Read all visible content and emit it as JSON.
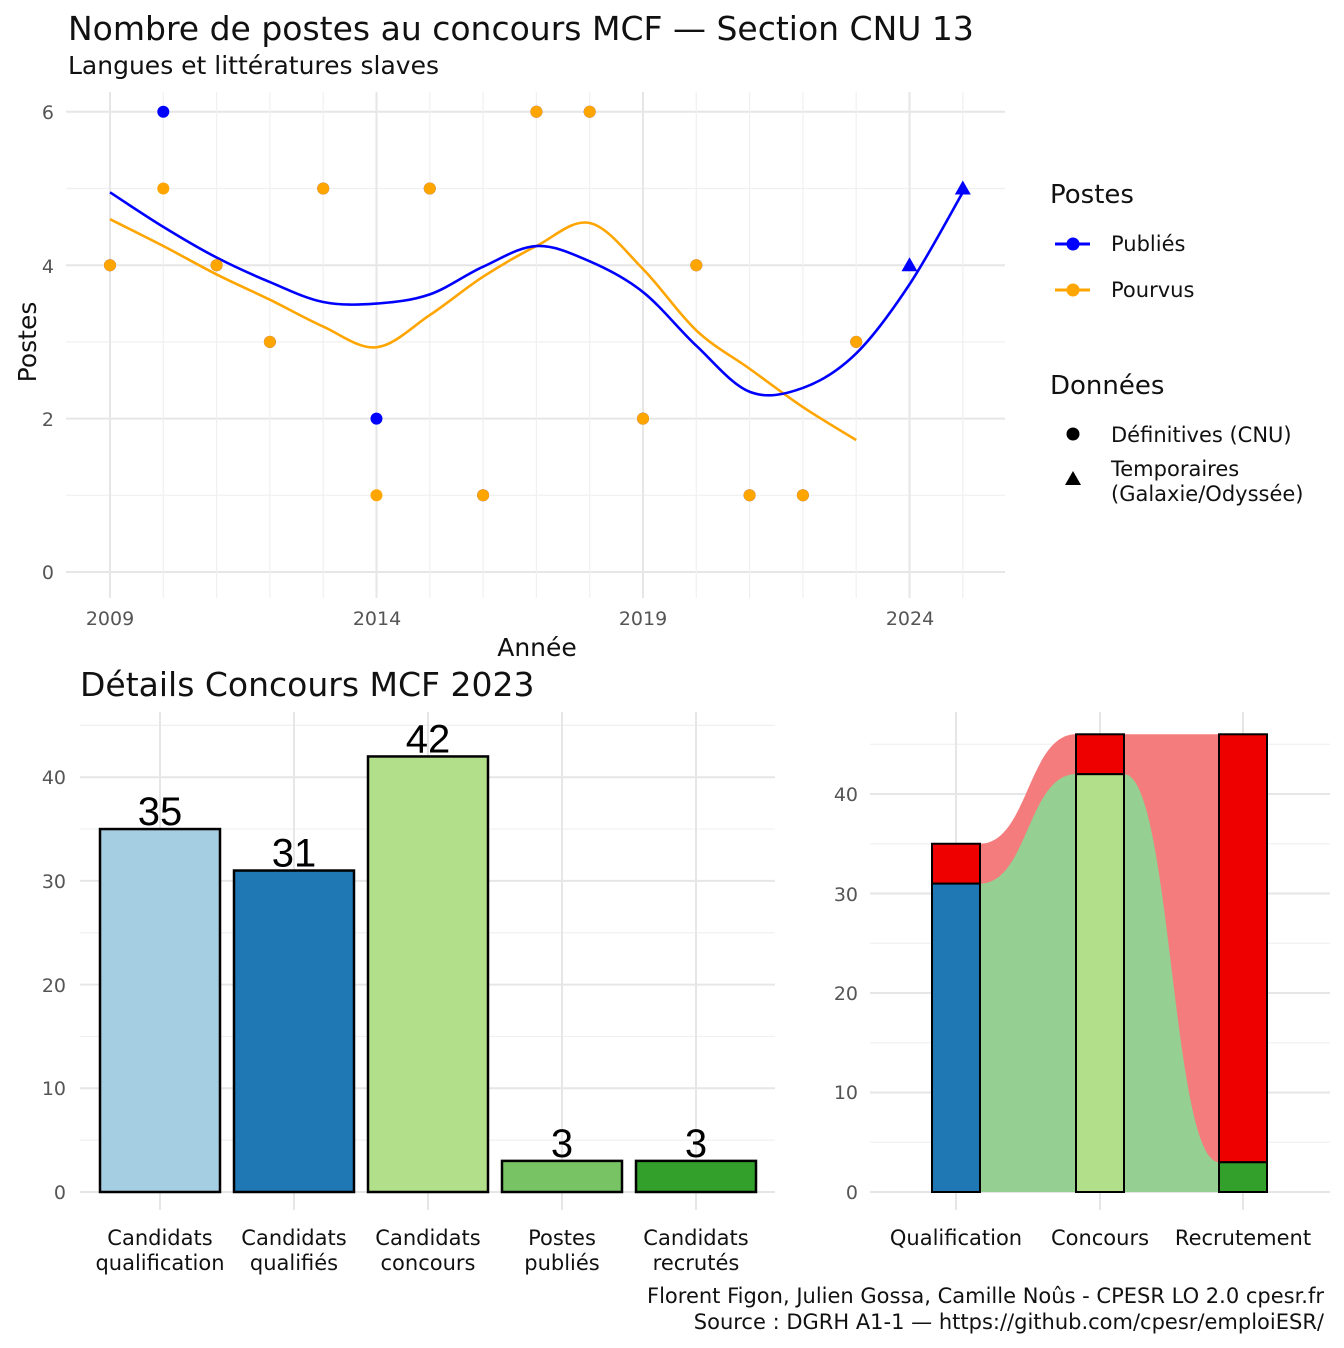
{
  "colors": {
    "publies": "#0000ff",
    "pourvus": "#ffa500",
    "cand_qualification": "#a6cee3",
    "cand_qualifies": "#1f78b4",
    "cand_concours": "#b2df8a",
    "postes_publies": "#78c464",
    "cand_recrutes": "#33a02c",
    "red": "#ee0000",
    "ribbon_red": "#f47c7c",
    "ribbon_green": "#95cf91"
  },
  "chart_data": [
    {
      "type": "scatter",
      "title": "Nombre de postes au concours MCF —  Section CNU 13",
      "subtitle": "Langues et littératures slaves",
      "xlabel": "Année",
      "ylabel": "Postes",
      "xlim": [
        2009,
        2025
      ],
      "ylim": [
        0,
        6
      ],
      "x_ticks": [
        "2009",
        "2014",
        "2019",
        "2024"
      ],
      "y_ticks": [
        "0",
        "2",
        "4",
        "6"
      ],
      "grid": true,
      "legend_placement": "right",
      "legend": {
        "color_title": "Postes",
        "color_items": [
          "Publiés",
          "Pourvus"
        ],
        "shape_title": "Données",
        "shape_items": [
          {
            "label": "Définitives (CNU)",
            "shape": "circle"
          },
          {
            "label_line1": "Temporaires",
            "label_line2": "(Galaxie/Odyssée)",
            "shape": "triangle"
          }
        ]
      },
      "series": [
        {
          "name": "Publiés",
          "points": [
            {
              "x": 2009,
              "y": 4
            },
            {
              "x": 2010,
              "y": 6
            },
            {
              "x": 2011,
              "y": 4
            },
            {
              "x": 2012,
              "y": 3
            },
            {
              "x": 2013,
              "y": 5
            },
            {
              "x": 2014,
              "y": 2
            },
            {
              "x": 2015,
              "y": 5
            },
            {
              "x": 2016,
              "y": 1
            },
            {
              "x": 2017,
              "y": 6
            },
            {
              "x": 2018,
              "y": 6
            },
            {
              "x": 2019,
              "y": 2
            },
            {
              "x": 2020,
              "y": 4
            },
            {
              "x": 2021,
              "y": 1
            },
            {
              "x": 2022,
              "y": 1
            },
            {
              "x": 2023,
              "y": 3
            },
            {
              "x": 2024,
              "y": 4,
              "shape": "triangle"
            },
            {
              "x": 2025,
              "y": 5,
              "shape": "triangle"
            }
          ],
          "smooth": [
            [
              2009,
              4.95
            ],
            [
              2010,
              4.5
            ],
            [
              2011,
              4.1
            ],
            [
              2012,
              3.78
            ],
            [
              2013,
              3.52
            ],
            [
              2014,
              3.5
            ],
            [
              2015,
              3.62
            ],
            [
              2016,
              3.98
            ],
            [
              2017,
              4.25
            ],
            [
              2018,
              4.05
            ],
            [
              2019,
              3.65
            ],
            [
              2020,
              2.95
            ],
            [
              2021,
              2.35
            ],
            [
              2022,
              2.4
            ],
            [
              2023,
              2.85
            ],
            [
              2024,
              3.75
            ],
            [
              2025,
              4.95
            ]
          ]
        },
        {
          "name": "Pourvus",
          "points": [
            {
              "x": 2009,
              "y": 4
            },
            {
              "x": 2010,
              "y": 5
            },
            {
              "x": 2011,
              "y": 4
            },
            {
              "x": 2012,
              "y": 3
            },
            {
              "x": 2013,
              "y": 5
            },
            {
              "x": 2014,
              "y": 1
            },
            {
              "x": 2015,
              "y": 5
            },
            {
              "x": 2016,
              "y": 1
            },
            {
              "x": 2017,
              "y": 6
            },
            {
              "x": 2018,
              "y": 6
            },
            {
              "x": 2019,
              "y": 2
            },
            {
              "x": 2020,
              "y": 4
            },
            {
              "x": 2021,
              "y": 1
            },
            {
              "x": 2022,
              "y": 1
            },
            {
              "x": 2023,
              "y": 3
            }
          ],
          "smooth": [
            [
              2009,
              4.6
            ],
            [
              2010,
              4.25
            ],
            [
              2011,
              3.88
            ],
            [
              2012,
              3.55
            ],
            [
              2013,
              3.2
            ],
            [
              2014,
              2.93
            ],
            [
              2015,
              3.35
            ],
            [
              2016,
              3.85
            ],
            [
              2017,
              4.25
            ],
            [
              2018,
              4.55
            ],
            [
              2019,
              3.95
            ],
            [
              2020,
              3.15
            ],
            [
              2021,
              2.65
            ],
            [
              2022,
              2.15
            ],
            [
              2023,
              1.72
            ]
          ]
        }
      ]
    },
    {
      "type": "bar",
      "title": "Détails Concours MCF 2023",
      "categories": [
        {
          "line1": "Candidats",
          "line2": "qualification"
        },
        {
          "line1": "Candidats",
          "line2": "qualifiés"
        },
        {
          "line1": "Candidats",
          "line2": "concours"
        },
        {
          "line1": "Postes",
          "line2": "publiés"
        },
        {
          "line1": "Candidats",
          "line2": "recrutés"
        }
      ],
      "values": [
        35,
        31,
        42,
        3,
        3
      ],
      "value_labels": [
        "35",
        "31",
        "42",
        "3",
        "3"
      ],
      "ylim": [
        0,
        45
      ],
      "y_ticks": [
        "0",
        "10",
        "20",
        "30",
        "40"
      ],
      "grid": true
    },
    {
      "type": "bar",
      "stacked": true,
      "categories": [
        "Qualification",
        "Concours",
        "Recrutement"
      ],
      "series": [
        {
          "values": [
            31,
            42,
            3
          ]
        },
        {
          "values": [
            4,
            4,
            43
          ]
        }
      ],
      "ylim": [
        0,
        47
      ],
      "y_ticks": [
        "0",
        "10",
        "20",
        "30",
        "40"
      ],
      "grid": true
    }
  ],
  "caption": {
    "line1": "Florent Figon, Julien Gossa, Camille Noûs - CPESR LO 2.0 cpesr.fr",
    "line2": "Source : DGRH A1-1 — https://github.com/cpesr/emploiESR/"
  }
}
